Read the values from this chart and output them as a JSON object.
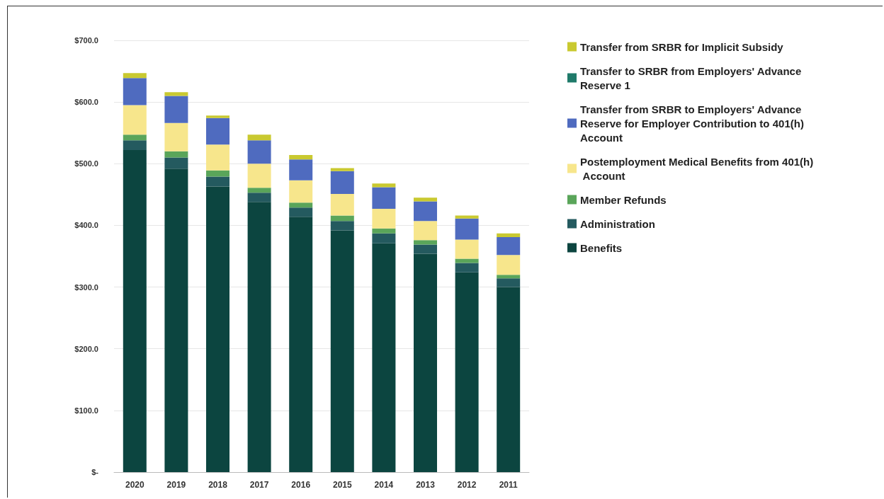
{
  "chart_data": {
    "type": "bar",
    "stacked": true,
    "categories": [
      "2020",
      "2019",
      "2018",
      "2017",
      "2016",
      "2015",
      "2014",
      "2013",
      "2012",
      "2011"
    ],
    "series": [
      {
        "name": "Benefits",
        "color": "#0c4540",
        "values": [
          522,
          492,
          463,
          438,
          414,
          392,
          371,
          354,
          324,
          300
        ]
      },
      {
        "name": "Administration",
        "color": "#245a5f",
        "values": [
          16,
          18,
          16,
          15,
          15,
          15,
          16,
          15,
          15,
          14
        ]
      },
      {
        "name": "Member Refunds",
        "color": "#5aa55a",
        "values": [
          9,
          10,
          10,
          8,
          8,
          9,
          8,
          7,
          7,
          6
        ]
      },
      {
        "name": "Postemployment Medical Benefits from 401(h) Account",
        "color": "#f7e68c",
        "values": [
          48,
          46,
          42,
          39,
          36,
          35,
          32,
          31,
          31,
          32
        ]
      },
      {
        "name": "Transfer from SRBR to Employers' Advance Reserve for Employer Contribution to 401(h) Account",
        "color": "#4f6bbf",
        "values": [
          44,
          44,
          43,
          38,
          34,
          37,
          35,
          32,
          34,
          29
        ]
      },
      {
        "name": "Transfer to SRBR from Employers' Advance Reserve 1",
        "color": "#1f7a6a",
        "values": [
          null,
          null,
          null,
          null,
          null,
          null,
          null,
          null,
          null,
          null
        ]
      },
      {
        "name": "Transfer from SRBR for Implicit Subsidy",
        "color": "#c9c930",
        "values": [
          8,
          6,
          4,
          9,
          7,
          5,
          6,
          6,
          5,
          6
        ]
      }
    ],
    "ylim": [
      0,
      700
    ],
    "yticks": [
      {
        "value": 0,
        "label": "$-"
      },
      {
        "value": 100,
        "label": "$100.0"
      },
      {
        "value": 200,
        "label": "$200.0"
      },
      {
        "value": 300,
        "label": "$300.0"
      },
      {
        "value": 400,
        "label": "$400.0"
      },
      {
        "value": 500,
        "label": "$500.0"
      },
      {
        "value": 600,
        "label": "$600.0"
      },
      {
        "value": 700,
        "label": "$700.0"
      }
    ],
    "grid": "y",
    "legend": "top right"
  }
}
